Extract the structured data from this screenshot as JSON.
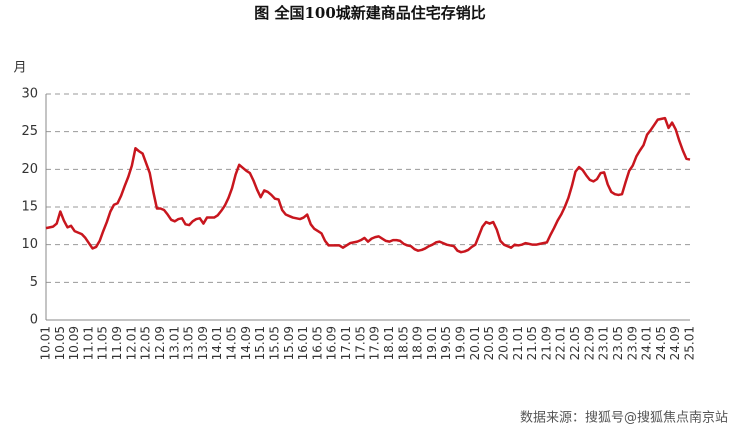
{
  "chart_data": {
    "type": "line",
    "title": "图  全国100城新建商品住宅存销比",
    "y_label": "月",
    "source": "数据来源：搜狐号@搜狐焦点南京站",
    "categories": [
      "10.01",
      null,
      null,
      null,
      "10.05",
      null,
      null,
      null,
      "10.09",
      null,
      null,
      null,
      "11.01",
      null,
      null,
      null,
      "11.05",
      null,
      null,
      null,
      "11.09",
      null,
      null,
      null,
      "12.01",
      null,
      null,
      null,
      "12.05",
      null,
      null,
      null,
      "12.09",
      null,
      null,
      null,
      "13.01",
      null,
      null,
      null,
      "13.05",
      null,
      null,
      null,
      "13.09",
      null,
      null,
      null,
      "14.01",
      null,
      null,
      null,
      "14.05",
      null,
      null,
      null,
      "14.09",
      null,
      null,
      null,
      "15.01",
      null,
      null,
      null,
      "15.05",
      null,
      null,
      null,
      "15.09",
      null,
      null,
      null,
      "16.01",
      null,
      null,
      null,
      "16.05",
      null,
      null,
      null,
      "16.09",
      null,
      null,
      null,
      "17.01",
      null,
      null,
      null,
      "17.05",
      null,
      null,
      null,
      "17.09",
      null,
      null,
      null,
      "18.01",
      null,
      null,
      null,
      "18.05",
      null,
      null,
      null,
      "18.09",
      null,
      null,
      null,
      "19.01",
      null,
      null,
      null,
      "19.05",
      null,
      null,
      null,
      "19.09",
      null,
      null,
      null,
      "20.01",
      null,
      null,
      null,
      "20.05",
      null,
      null,
      null,
      "20.09",
      null,
      null,
      null,
      "21.01",
      null,
      null,
      null,
      "21.05",
      null,
      null,
      null,
      "21.09",
      null,
      null,
      null,
      "22.01",
      null,
      null,
      null,
      "22.05",
      null,
      null,
      null,
      "22.09",
      null,
      null,
      null,
      "23.01",
      null,
      null,
      null,
      "23.05",
      null,
      null,
      null,
      "23.09",
      null,
      null,
      null,
      "24.01",
      null,
      null,
      null,
      "24.05",
      null,
      null,
      null,
      "24.09",
      null,
      null,
      null,
      "25.01"
    ],
    "series": [
      {
        "name": "存销比",
        "color": "#c8161e",
        "values": [
          12.2,
          12.3,
          12.4,
          12.8,
          14.4,
          13.2,
          12.3,
          12.5,
          11.8,
          11.6,
          11.4,
          10.9,
          10.2,
          9.5,
          9.7,
          10.5,
          11.8,
          13,
          14.4,
          15.3,
          15.5,
          16.5,
          17.8,
          19,
          20.5,
          22.8,
          22.4,
          22.1,
          20.8,
          19.5,
          17,
          14.8,
          14.8,
          14.6,
          14,
          13.3,
          13.1,
          13.4,
          13.5,
          12.7,
          12.6,
          13.1,
          13.4,
          13.5,
          12.8,
          13.6,
          13.6,
          13.6,
          13.9,
          14.5,
          15.2,
          16.2,
          17.5,
          19.3,
          20.6,
          20.2,
          19.8,
          19.5,
          18.5,
          17.3,
          16.3,
          17.2,
          17,
          16.6,
          16.1,
          16,
          14.6,
          14,
          13.8,
          13.6,
          13.5,
          13.4,
          13.6,
          14,
          12.7,
          12.1,
          11.8,
          11.5,
          10.5,
          9.9,
          9.9,
          9.9,
          9.9,
          9.6,
          9.9,
          10.2,
          10.3,
          10.4,
          10.6,
          10.9,
          10.4,
          10.8,
          11,
          11.1,
          10.8,
          10.5,
          10.4,
          10.6,
          10.6,
          10.5,
          10.1,
          9.9,
          9.8,
          9.4,
          9.2,
          9.3,
          9.5,
          9.8,
          10,
          10.3,
          10.4,
          10.2,
          10,
          9.9,
          9.8,
          9.2,
          9,
          9.1,
          9.3,
          9.7,
          10,
          11.2,
          12.4,
          13,
          12.8,
          13,
          12,
          10.5,
          10,
          9.8,
          9.6,
          10,
          9.9,
          10,
          10.2,
          10.1,
          10,
          10,
          10.1,
          10.2,
          10.3,
          11.3,
          12.2,
          13.2,
          14,
          15,
          16.2,
          17.8,
          19.7,
          20.3,
          19.9,
          19.2,
          18.6,
          18.4,
          18.7,
          19.5,
          19.6,
          18,
          17,
          16.7,
          16.6,
          16.7,
          18.3,
          19.8,
          20.5,
          21.7,
          22.5,
          23.2,
          24.6,
          25.2,
          25.9,
          26.6,
          26.7,
          26.8,
          25.5,
          26.2,
          25.3,
          23.8,
          22.5,
          21.4,
          21.3
        ]
      }
    ],
    "ylim": [
      0,
      30
    ],
    "yticks": [
      0,
      5,
      10,
      15,
      20,
      25,
      30
    ],
    "grid": true
  }
}
